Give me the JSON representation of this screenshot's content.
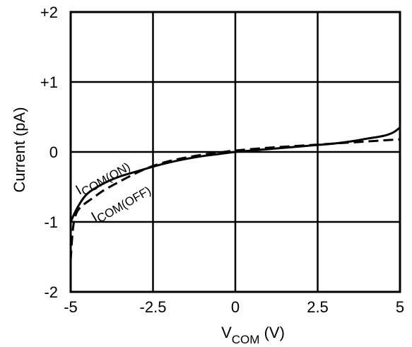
{
  "chart_data": {
    "type": "line",
    "title": "",
    "xlabel": {
      "main": "V",
      "sub": "COM",
      "unit": " (V)"
    },
    "ylabel": "Current (pA)",
    "xlim": [
      -5,
      5
    ],
    "ylim": [
      -2,
      2
    ],
    "grid": true,
    "x_ticks": [
      {
        "value": -5,
        "label": "-5"
      },
      {
        "value": -2.5,
        "label": "-2.5"
      },
      {
        "value": 0,
        "label": "0"
      },
      {
        "value": 2.5,
        "label": "2.5"
      },
      {
        "value": 5,
        "label": "5"
      }
    ],
    "y_ticks": [
      {
        "value": 2,
        "label": "+2"
      },
      {
        "value": 1,
        "label": "+1"
      },
      {
        "value": 0,
        "label": "0"
      },
      {
        "value": -1,
        "label": "-1"
      },
      {
        "value": -2,
        "label": "-2"
      }
    ],
    "series": [
      {
        "name": "ICOM(ON)",
        "label_main": "I",
        "label_sub": "COM(ON)",
        "style": "solid",
        "color": "#000000",
        "x": [
          -5.0,
          -4.8,
          -4.5,
          -4.0,
          -3.5,
          -3.0,
          -2.5,
          -2.0,
          -1.5,
          -1.0,
          -0.5,
          0.0,
          1.0,
          2.0,
          2.5,
          3.0,
          3.5,
          4.0,
          4.5,
          4.8,
          5.0
        ],
        "y": [
          -1.0,
          -0.8,
          -0.6,
          -0.45,
          -0.35,
          -0.28,
          -0.21,
          -0.15,
          -0.1,
          -0.06,
          -0.03,
          0.0,
          0.04,
          0.08,
          0.1,
          0.12,
          0.15,
          0.19,
          0.23,
          0.28,
          0.35
        ]
      },
      {
        "name": "ICOM(OFF)",
        "label_main": "I",
        "label_sub": "COM(OFF)",
        "style": "dashed",
        "color": "#000000",
        "x": [
          -5.0,
          -4.95,
          -4.9,
          -4.8,
          -4.6,
          -4.3,
          -4.0,
          -3.5,
          -3.0,
          -2.5,
          -2.0,
          -1.5,
          -1.0,
          -0.5,
          0.0,
          1.0,
          2.0,
          3.0,
          4.0,
          5.0
        ],
        "y": [
          -1.55,
          -1.2,
          -1.0,
          -0.85,
          -0.75,
          -0.65,
          -0.55,
          -0.42,
          -0.3,
          -0.2,
          -0.13,
          -0.08,
          -0.04,
          -0.01,
          0.02,
          0.06,
          0.09,
          0.12,
          0.15,
          0.18
        ]
      }
    ]
  }
}
